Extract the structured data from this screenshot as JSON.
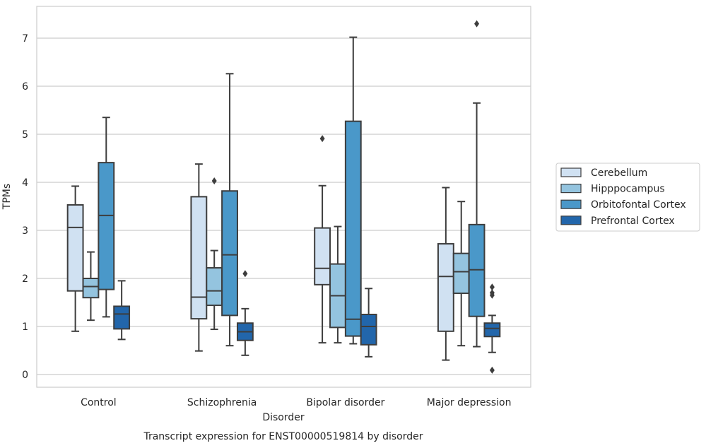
{
  "chart_data": {
    "type": "boxplot",
    "title": "",
    "xlabel": "Disorder",
    "ylabel": "TPMs",
    "caption": "Transcript expression for ENST00000519814 by disorder",
    "categories": [
      "Control",
      "Schizophrenia",
      "Bipolar disorder",
      "Major depression"
    ],
    "ylim": [
      -0.25,
      7.65
    ],
    "yticks": [
      0,
      1,
      2,
      3,
      4,
      5,
      6,
      7
    ],
    "grid": "horizontal",
    "legend_position": "right",
    "series": [
      {
        "name": "Cerebellum",
        "color": "#d0e1f2",
        "boxes": [
          {
            "whislo": 0.9,
            "q1": 1.74,
            "med": 3.06,
            "q3": 3.53,
            "whishi": 3.92,
            "fliers": []
          },
          {
            "whislo": 0.49,
            "q1": 1.16,
            "med": 1.61,
            "q3": 3.7,
            "whishi": 4.38,
            "fliers": []
          },
          {
            "whislo": 0.66,
            "q1": 1.87,
            "med": 2.21,
            "q3": 3.05,
            "whishi": 3.93,
            "fliers": [
              4.91
            ]
          },
          {
            "whislo": 0.3,
            "q1": 0.9,
            "med": 2.04,
            "q3": 2.72,
            "whishi": 3.89,
            "fliers": []
          }
        ]
      },
      {
        "name": "Hipppocampus",
        "color": "#94c4df",
        "boxes": [
          {
            "whislo": 1.13,
            "q1": 1.6,
            "med": 1.83,
            "q3": 2.0,
            "whishi": 2.55,
            "fliers": []
          },
          {
            "whislo": 0.94,
            "q1": 1.44,
            "med": 1.74,
            "q3": 2.22,
            "whishi": 2.58,
            "fliers": [
              4.03
            ]
          },
          {
            "whislo": 0.66,
            "q1": 0.98,
            "med": 1.64,
            "q3": 2.3,
            "whishi": 3.08,
            "fliers": []
          },
          {
            "whislo": 0.6,
            "q1": 1.69,
            "med": 2.14,
            "q3": 2.52,
            "whishi": 3.6,
            "fliers": []
          }
        ]
      },
      {
        "name": "Orbitofontal Cortex",
        "color": "#4a98c9",
        "boxes": [
          {
            "whislo": 1.2,
            "q1": 1.77,
            "med": 3.31,
            "q3": 4.41,
            "whishi": 5.35,
            "fliers": []
          },
          {
            "whislo": 0.6,
            "q1": 1.23,
            "med": 2.49,
            "q3": 3.82,
            "whishi": 6.26,
            "fliers": []
          },
          {
            "whislo": 0.64,
            "q1": 0.8,
            "med": 1.15,
            "q3": 5.27,
            "whishi": 7.02,
            "fliers": []
          },
          {
            "whislo": 0.58,
            "q1": 1.21,
            "med": 2.18,
            "q3": 3.12,
            "whishi": 5.65,
            "fliers": [
              7.3
            ]
          }
        ]
      },
      {
        "name": "Prefrontal Cortex",
        "color": "#2266ab",
        "boxes": [
          {
            "whislo": 0.73,
            "q1": 0.95,
            "med": 1.26,
            "q3": 1.42,
            "whishi": 1.95,
            "fliers": []
          },
          {
            "whislo": 0.4,
            "q1": 0.71,
            "med": 0.89,
            "q3": 1.07,
            "whishi": 1.37,
            "fliers": [
              2.1
            ]
          },
          {
            "whislo": 0.37,
            "q1": 0.62,
            "med": 1.0,
            "q3": 1.25,
            "whishi": 1.79,
            "fliers": []
          },
          {
            "whislo": 0.46,
            "q1": 0.79,
            "med": 0.96,
            "q3": 1.07,
            "whishi": 1.23,
            "fliers": [
              1.82,
              1.7,
              1.65,
              0.09
            ]
          }
        ]
      }
    ]
  },
  "style": {
    "line_color": "#3d3d3d",
    "grid_color": "#cccccc",
    "frame_color": "#cccccc"
  }
}
